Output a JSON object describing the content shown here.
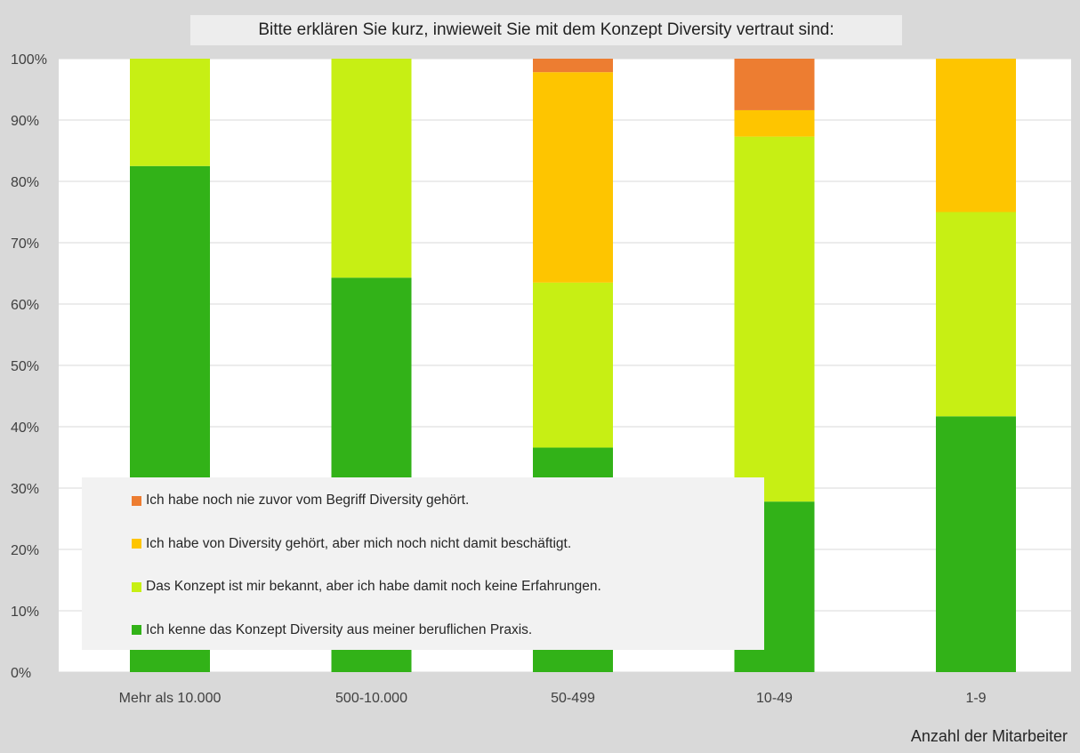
{
  "chart_data": {
    "type": "bar",
    "stacked": true,
    "normalized": true,
    "title": "Bitte erklären Sie kurz, inwieweit Sie mit dem Konzept Diversity vertraut sind:",
    "xlabel": "Anzahl der Mitarbeiter",
    "ylabel": "",
    "ylim": [
      0,
      100
    ],
    "yticks": [
      "0%",
      "10%",
      "20%",
      "30%",
      "40%",
      "50%",
      "60%",
      "70%",
      "80%",
      "90%",
      "100%"
    ],
    "categories": [
      "Mehr als 10.000",
      "500-10.000",
      "50-499",
      "10-49",
      "1-9"
    ],
    "series": [
      {
        "name": "Ich kenne das Konzept Diversity aus meiner beruflichen Praxis.",
        "color": "#32b218",
        "values": [
          82.5,
          64.3,
          36.6,
          27.8,
          41.7
        ]
      },
      {
        "name": "Das Konzept ist mir bekannt, aber ich habe damit noch keine Erfahrungen.",
        "color": "#c7ef14",
        "values": [
          17.5,
          35.7,
          26.9,
          59.5,
          33.3
        ]
      },
      {
        "name": "Ich habe von Diversity gehört, aber mich noch nicht damit beschäftigt.",
        "color": "#fec500",
        "values": [
          0,
          0,
          34.3,
          4.3,
          25.0
        ]
      },
      {
        "name": "Ich habe noch nie zuvor vom Begriff Diversity gehört.",
        "color": "#ed7d31",
        "values": [
          0,
          0,
          2.2,
          8.4,
          0
        ]
      }
    ],
    "legend": {
      "position": "bottom-left",
      "order": [
        "Ich habe noch nie zuvor vom Begriff Diversity gehört.",
        "Ich habe von Diversity gehört, aber mich noch nicht damit beschäftigt.",
        "Das Konzept ist mir bekannt, aber ich habe damit noch keine Erfahrungen.",
        "Ich kenne das Konzept Diversity aus meiner beruflichen Praxis."
      ]
    },
    "grid": true
  }
}
